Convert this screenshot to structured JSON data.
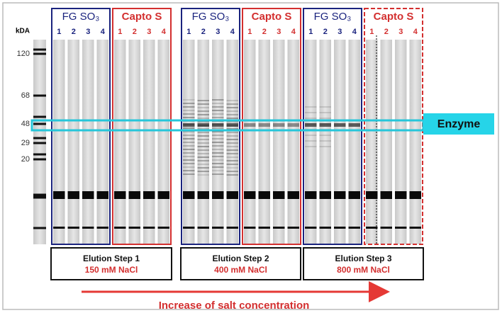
{
  "y_axis_label": "kDA",
  "ladder_labels": [
    "120",
    "68",
    "48",
    "29",
    "20"
  ],
  "panels": [
    {
      "title": "FG SO₃",
      "lanes": [
        "1",
        "2",
        "3",
        "4"
      ]
    },
    {
      "title": "Capto S",
      "lanes": [
        "1",
        "2",
        "3",
        "4"
      ]
    },
    {
      "title": "FG SO₃",
      "lanes": [
        "1",
        "2",
        "3",
        "4"
      ]
    },
    {
      "title": "Capto S",
      "lanes": [
        "1",
        "2",
        "3",
        "4"
      ]
    },
    {
      "title": "FG SO₃",
      "lanes": [
        "1",
        "2",
        "3",
        "4"
      ]
    },
    {
      "title": "Capto S",
      "lanes": [
        "1",
        "2",
        "3",
        "4"
      ]
    }
  ],
  "band_label": "Enzyme",
  "steps": [
    {
      "title": "Elution Step 1",
      "condition": "150 mM NaCl"
    },
    {
      "title": "Elution Step 2",
      "condition": "400 mM NaCl"
    },
    {
      "title": "Elution Step 3",
      "condition": "800 mM NaCl"
    }
  ],
  "footer": "Increase of salt concentration"
}
